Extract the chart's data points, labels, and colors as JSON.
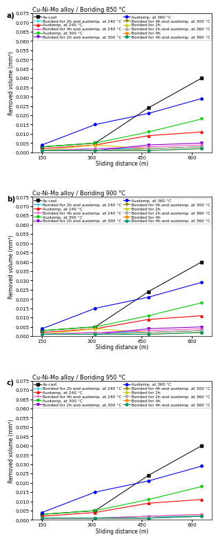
{
  "x": [
    150,
    310,
    470,
    630
  ],
  "panels": [
    {
      "label": "a)",
      "title": "Cu-Ni-Mo alloy / Boriding 850 °C",
      "series": [
        {
          "name": "As-cast",
          "color": "#111111",
          "marker": "s",
          "linestyle": "-",
          "y": [
            0.003,
            0.005,
            0.024,
            0.04
          ]
        },
        {
          "name": "Austemp. at 240 °C",
          "color": "#ff0000",
          "marker": "^",
          "linestyle": "-",
          "y": [
            0.002,
            0.004,
            0.009,
            0.011
          ]
        },
        {
          "name": "Austemp. at 300 °C",
          "color": "#00cc00",
          "marker": "v",
          "linestyle": "-",
          "y": [
            0.003,
            0.005,
            0.011,
            0.018
          ]
        },
        {
          "name": "Austemp. at 360 °C",
          "color": "#0000ff",
          "marker": "o",
          "linestyle": "-",
          "y": [
            0.004,
            0.015,
            0.021,
            0.029
          ]
        },
        {
          "name": "Borided for 2h",
          "color": "#cccc00",
          "marker": "^",
          "linestyle": "-",
          "y": [
            0.001,
            0.004,
            0.002,
            0.003
          ]
        },
        {
          "name": "Borided for 4h",
          "color": "#ff8800",
          "marker": "o",
          "linestyle": "-",
          "y": [
            0.001,
            0.001,
            0.001,
            0.002
          ]
        },
        {
          "name": "Borided for 2h and austemp. at 240 °C",
          "color": "#00ccee",
          "marker": "+",
          "linestyle": "-",
          "y": [
            0.001,
            0.002,
            0.002,
            0.003
          ]
        },
        {
          "name": "Borided for 4h and austemp. at 240 °C",
          "color": "#ff44cc",
          "marker": "+",
          "linestyle": "-",
          "y": [
            0.001,
            0.002,
            0.003,
            0.004
          ]
        },
        {
          "name": "Borided for 2h and austemp. at 300 °C",
          "color": "#8800cc",
          "marker": "v",
          "linestyle": "-",
          "y": [
            0.001,
            0.001,
            0.004,
            0.005
          ]
        },
        {
          "name": "Borided for 4h and austemp. at 300 °C",
          "color": "#888800",
          "marker": "v",
          "linestyle": "-",
          "y": [
            0.001,
            0.001,
            0.002,
            0.003
          ]
        },
        {
          "name": "Borided for 2h and austemp. at 360 °C",
          "color": "#aaaaaa",
          "marker": "o",
          "linestyle": "-",
          "y": [
            0.001,
            0.001,
            0.002,
            0.003
          ]
        },
        {
          "name": "Borided for 4h and austemp. at 360 °C",
          "color": "#009966",
          "marker": "o",
          "linestyle": "-",
          "y": [
            0.001,
            0.001,
            0.001,
            0.002
          ]
        }
      ]
    },
    {
      "label": "b)",
      "title": "Cu-Ni-Mo alloy / Boriding 900 °C",
      "series": [
        {
          "name": "As-cast",
          "color": "#111111",
          "marker": "s",
          "linestyle": "-",
          "y": [
            0.003,
            0.005,
            0.024,
            0.04
          ]
        },
        {
          "name": "Austemp. at 240 °C",
          "color": "#ff0000",
          "marker": "^",
          "linestyle": "-",
          "y": [
            0.002,
            0.004,
            0.009,
            0.011
          ]
        },
        {
          "name": "Austemp. at 300 °C",
          "color": "#00cc00",
          "marker": "v",
          "linestyle": "-",
          "y": [
            0.003,
            0.005,
            0.011,
            0.018
          ]
        },
        {
          "name": "Austemp. at 360 °C",
          "color": "#0000ff",
          "marker": "o",
          "linestyle": "-",
          "y": [
            0.004,
            0.015,
            0.021,
            0.029
          ]
        },
        {
          "name": "Borided for 2h",
          "color": "#cccc00",
          "marker": "^",
          "linestyle": "-",
          "y": [
            0.001,
            0.004,
            0.002,
            0.003
          ]
        },
        {
          "name": "Borided for 4h",
          "color": "#ff8800",
          "marker": "o",
          "linestyle": "-",
          "y": [
            0.001,
            0.001,
            0.001,
            0.002
          ]
        },
        {
          "name": "Borided for 2h and austemp. at 240 °C",
          "color": "#00ccee",
          "marker": "+",
          "linestyle": "-",
          "y": [
            0.001,
            0.002,
            0.002,
            0.003
          ]
        },
        {
          "name": "Borided for 4h and austemp. at 240 °C",
          "color": "#ff44cc",
          "marker": "+",
          "linestyle": "-",
          "y": [
            0.001,
            0.002,
            0.003,
            0.004
          ]
        },
        {
          "name": "Borided for 2h and austemp. at 300 °C",
          "color": "#8800cc",
          "marker": "v",
          "linestyle": "-",
          "y": [
            0.001,
            0.001,
            0.004,
            0.005
          ]
        },
        {
          "name": "Borided for 4h and austemp. at 300 °C",
          "color": "#888800",
          "marker": "v",
          "linestyle": "-",
          "y": [
            0.001,
            0.001,
            0.002,
            0.003
          ]
        },
        {
          "name": "Borided for 2h and austemp. at 360 °C",
          "color": "#aaaaaa",
          "marker": "o",
          "linestyle": "-",
          "y": [
            0.001,
            0.001,
            0.002,
            0.003
          ]
        },
        {
          "name": "Borided for 4h and austemp. at 360 °C",
          "color": "#009966",
          "marker": "o",
          "linestyle": "-",
          "y": [
            0.001,
            0.001,
            0.001,
            0.002
          ]
        }
      ]
    },
    {
      "label": "c)",
      "title": "Cu-Ni-Mo alloy / Boriding 950 °C",
      "series": [
        {
          "name": "As-cast",
          "color": "#111111",
          "marker": "s",
          "linestyle": "-",
          "y": [
            0.003,
            0.005,
            0.024,
            0.04
          ]
        },
        {
          "name": "Austemp. at 240 °C",
          "color": "#ff0000",
          "marker": "^",
          "linestyle": "-",
          "y": [
            0.002,
            0.004,
            0.009,
            0.011
          ]
        },
        {
          "name": "Austemp. at 300 °C",
          "color": "#00cc00",
          "marker": "v",
          "linestyle": "-",
          "y": [
            0.003,
            0.005,
            0.011,
            0.018
          ]
        },
        {
          "name": "Austemp. at 360 °C",
          "color": "#0000ff",
          "marker": "o",
          "linestyle": "-",
          "y": [
            0.004,
            0.015,
            0.021,
            0.029
          ]
        },
        {
          "name": "Borided for 2h",
          "color": "#cccc00",
          "marker": "^",
          "linestyle": "-",
          "y": [
            0.001,
            0.001,
            0.002,
            0.003
          ]
        },
        {
          "name": "Borided for 4h",
          "color": "#ff8800",
          "marker": "o",
          "linestyle": "-",
          "y": [
            0.001,
            0.001,
            0.001,
            0.002
          ]
        },
        {
          "name": "Borided for 2h and austemp. at 240 °C",
          "color": "#00ccee",
          "marker": "+",
          "linestyle": "-",
          "y": [
            0.001,
            0.001,
            0.002,
            0.002
          ]
        },
        {
          "name": "Borided for 4h and austemp. at 240 °C",
          "color": "#ff44cc",
          "marker": "+",
          "linestyle": "-",
          "y": [
            0.001,
            0.001,
            0.002,
            0.003
          ]
        },
        {
          "name": "Borided for 2h and austemp. at 300 °C",
          "color": "#8800cc",
          "marker": "v",
          "linestyle": "-",
          "y": [
            0.001,
            0.001,
            0.001,
            0.002
          ]
        },
        {
          "name": "Borided for 4h and austemp. at 300 °C",
          "color": "#888800",
          "marker": "v",
          "linestyle": "-",
          "y": [
            0.001,
            0.001,
            0.001,
            0.002
          ]
        },
        {
          "name": "Borided for 2h and austemp. at 360 °C",
          "color": "#aaaaaa",
          "marker": "o",
          "linestyle": "-",
          "y": [
            0.001,
            0.001,
            0.001,
            0.002
          ]
        },
        {
          "name": "Borided for 4h and austemp. at 360 °C",
          "color": "#009966",
          "marker": "o",
          "linestyle": "-",
          "y": [
            0.001,
            0.001,
            0.001,
            0.002
          ]
        }
      ]
    }
  ],
  "xlabel": "Sliding distance (m)",
  "ylabel": "Removed volume (mm³)",
  "ylim": [
    0,
    0.075
  ],
  "yticks": [
    0.0,
    0.005,
    0.01,
    0.015,
    0.02,
    0.025,
    0.03,
    0.035,
    0.04,
    0.045,
    0.05,
    0.055,
    0.06,
    0.065,
    0.07,
    0.075
  ],
  "xticks": [
    150,
    300,
    450,
    600
  ],
  "fontsize_title": 6.0,
  "fontsize_legend": 4.2,
  "fontsize_axis_label": 5.5,
  "fontsize_tick": 5.0,
  "marker_size": 2.5,
  "linewidth": 0.8
}
